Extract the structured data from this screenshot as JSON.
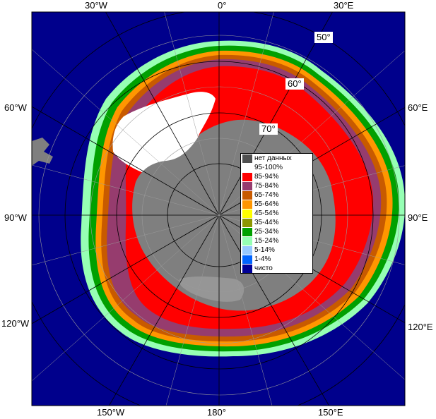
{
  "map": {
    "colors": {
      "open_water": "#00008c",
      "land": "#7f7f7f",
      "ice_shelf": "#969696"
    },
    "lon_labels": [
      "30°W",
      "0°",
      "30°E",
      "60°W",
      "60°E",
      "90°W",
      "90°E",
      "120°W",
      "120°E",
      "150°W",
      "180°",
      "150°E"
    ],
    "lat_labels": [
      "50°",
      "60°",
      "70°"
    ]
  },
  "legend": [
    {
      "label": "нет данных",
      "color": "#505050"
    },
    {
      "label": "95-100%",
      "color": "#ffffff"
    },
    {
      "label": "85-94%",
      "color": "#ff0000"
    },
    {
      "label": "75-84%",
      "color": "#963c6e"
    },
    {
      "label": "65-74%",
      "color": "#c85a00"
    },
    {
      "label": "55-64%",
      "color": "#ff9600"
    },
    {
      "label": "45-54%",
      "color": "#ffff00"
    },
    {
      "label": "35-44%",
      "color": "#8c9600"
    },
    {
      "label": "25-34%",
      "color": "#00a000"
    },
    {
      "label": "15-24%",
      "color": "#96ffb4"
    },
    {
      "label": "5-14%",
      "color": "#96c8ff"
    },
    {
      "label": "1-4%",
      "color": "#0064ff"
    },
    {
      "label": "чисто",
      "color": "#000096"
    }
  ]
}
